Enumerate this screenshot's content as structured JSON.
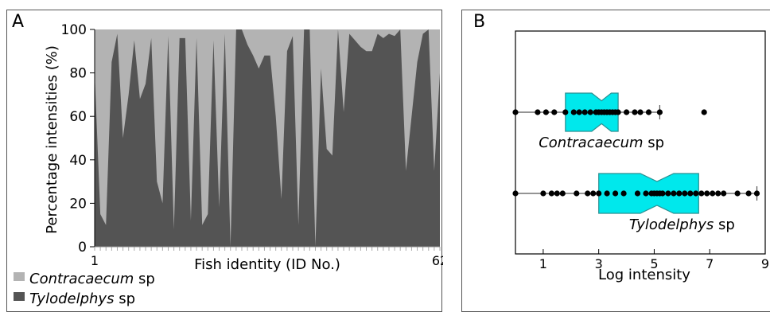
{
  "panel_labels": {
    "a": "A",
    "b": "B"
  },
  "colors": {
    "contracaecum_area": "#b3b3b3",
    "tylodelphys_area": "#545454",
    "box_fill": "#00e8ec",
    "box_stroke": "#2a8f91",
    "dot": "#000000"
  },
  "chart_data": [
    {
      "type": "area",
      "panel": "A",
      "xlabel": "Fish identity (ID No.)",
      "ylabel": "Percentage intensities (%)",
      "ylim": [
        0,
        100
      ],
      "yticks": [
        0,
        20,
        40,
        60,
        80,
        100
      ],
      "xlim": [
        1,
        62
      ],
      "xtick_labels": [
        {
          "x": 1,
          "label": "1"
        },
        {
          "x": 62,
          "label": "62"
        }
      ],
      "x": [
        1,
        2,
        3,
        4,
        5,
        6,
        7,
        8,
        9,
        10,
        11,
        12,
        13,
        14,
        15,
        16,
        17,
        18,
        19,
        20,
        21,
        22,
        23,
        24,
        25,
        26,
        27,
        28,
        29,
        30,
        31,
        32,
        33,
        34,
        35,
        36,
        37,
        38,
        39,
        40,
        41,
        42,
        43,
        44,
        45,
        46,
        47,
        48,
        49,
        50,
        51,
        52,
        53,
        54,
        55,
        56,
        57,
        58,
        59,
        60,
        61,
        62
      ],
      "series": [
        {
          "name": "Tylodelphys sp",
          "stack_position": "bottom",
          "values": [
            80,
            15,
            10,
            85,
            98,
            50,
            70,
            95,
            68,
            75,
            96,
            30,
            20,
            97,
            8,
            96,
            96,
            12,
            96,
            10,
            15,
            95,
            18,
            98,
            0,
            100,
            100,
            93,
            88,
            82,
            88,
            88,
            60,
            22,
            90,
            97,
            10,
            100,
            100,
            0,
            82,
            45,
            42,
            100,
            62,
            98,
            95,
            92,
            90,
            90,
            98,
            96,
            98,
            97,
            100,
            35,
            60,
            85,
            98,
            100,
            35,
            80
          ]
        },
        {
          "name": "Contracaecum sp",
          "stack_position": "top",
          "values": [
            20,
            85,
            90,
            15,
            2,
            50,
            30,
            5,
            32,
            25,
            4,
            70,
            80,
            3,
            92,
            4,
            4,
            88,
            4,
            90,
            85,
            5,
            82,
            2,
            100,
            0,
            0,
            7,
            12,
            18,
            12,
            12,
            40,
            78,
            10,
            3,
            90,
            0,
            0,
            100,
            18,
            55,
            58,
            0,
            38,
            2,
            5,
            8,
            10,
            10,
            2,
            4,
            2,
            3,
            0,
            65,
            40,
            15,
            2,
            0,
            65,
            20
          ]
        }
      ],
      "legend": {
        "placement": "bottom-left",
        "entries": [
          {
            "series": "Contracaecum sp",
            "italic_part": "Contracaecum",
            "suffix": " sp"
          },
          {
            "series": "Tylodelphys sp",
            "italic_part": "Tylodelphys",
            "suffix": " sp"
          }
        ]
      }
    },
    {
      "type": "box",
      "panel": "B",
      "notched": true,
      "xlabel": "Log intensity",
      "xlim": [
        0,
        9
      ],
      "xticks": [
        1,
        3,
        5,
        7,
        9
      ],
      "groups": [
        {
          "name": "Contracaecum sp",
          "italic_part": "Contracaecum",
          "suffix": " sp",
          "q1": 1.8,
          "median": 3.1,
          "q3": 3.7,
          "notch_low": 2.75,
          "notch_high": 3.45,
          "whisker_low": 0.0,
          "whisker_high": 5.2,
          "points": [
            0.0,
            0.8,
            1.1,
            1.4,
            1.8,
            2.1,
            2.3,
            2.5,
            2.7,
            2.9,
            3.0,
            3.1,
            3.2,
            3.3,
            3.4,
            3.5,
            3.6,
            3.7,
            4.0,
            4.3,
            4.5,
            4.8,
            5.2,
            6.8
          ]
        },
        {
          "name": "Tylodelphys sp",
          "italic_part": "Tylodelphys",
          "suffix": " sp",
          "q1": 3.0,
          "median": 5.1,
          "q3": 6.6,
          "notch_low": 4.5,
          "notch_high": 5.7,
          "whisker_low": 0.0,
          "whisker_high": 8.7,
          "points": [
            0.0,
            1.0,
            1.3,
            1.5,
            1.7,
            2.2,
            2.6,
            2.8,
            3.0,
            3.3,
            3.6,
            3.9,
            4.4,
            4.7,
            4.9,
            5.0,
            5.1,
            5.2,
            5.3,
            5.5,
            5.7,
            5.9,
            6.1,
            6.3,
            6.5,
            6.7,
            6.9,
            7.1,
            7.3,
            7.5,
            8.0,
            8.4,
            8.7
          ]
        }
      ]
    }
  ]
}
